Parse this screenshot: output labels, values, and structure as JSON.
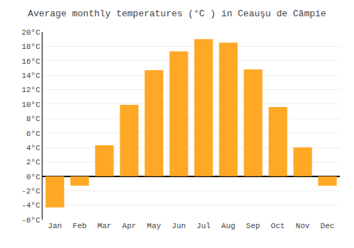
{
  "chart_data": {
    "type": "bar",
    "title": "Average monthly temperatures (°C ) in Ceauşu de Câmpie",
    "categories": [
      "Jan",
      "Feb",
      "Mar",
      "Apr",
      "May",
      "Jun",
      "Jul",
      "Aug",
      "Sep",
      "Oct",
      "Nov",
      "Dec"
    ],
    "values": [
      -4.3,
      -1.3,
      4.3,
      9.9,
      14.7,
      17.3,
      19.0,
      18.5,
      14.8,
      9.6,
      4.0,
      -1.3
    ],
    "color": "#FFA826",
    "ylim": [
      -6,
      20
    ],
    "yticks": [
      {
        "value": -6,
        "label": "-6°C"
      },
      {
        "value": -4,
        "label": "-4°C"
      },
      {
        "value": -2,
        "label": "-2°C"
      },
      {
        "value": 0,
        "label": "0°C"
      },
      {
        "value": 2,
        "label": "2°C"
      },
      {
        "value": 4,
        "label": "4°C"
      },
      {
        "value": 6,
        "label": "6°C"
      },
      {
        "value": 8,
        "label": "8°C"
      },
      {
        "value": 10,
        "label": "10°C"
      },
      {
        "value": 12,
        "label": "12°C"
      },
      {
        "value": 14,
        "label": "14°C"
      },
      {
        "value": 16,
        "label": "16°C"
      },
      {
        "value": 18,
        "label": "18°C"
      },
      {
        "value": 20,
        "label": "20°C"
      }
    ],
    "grid": true
  }
}
